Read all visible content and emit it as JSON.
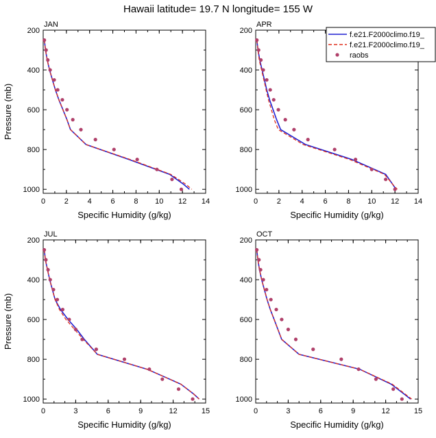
{
  "title": "Hawaii  latitude= 19.7 N longitude= 155 W",
  "chart_data": {
    "type": "line",
    "xlabel": "Specific Humidity (g/kg)",
    "ylabel": "Pressure (mb)",
    "ylim": [
      200,
      1020
    ],
    "y_reversed": true,
    "y_ticks": [
      200,
      400,
      600,
      800,
      1000
    ],
    "legend": [
      {
        "name": "f.e21.F2000climo.f19_",
        "style": "solid",
        "color": "#1f1fd1"
      },
      {
        "name": "f.e21.F2000climo.f19_",
        "style": "dashed",
        "color": "#e0301e"
      },
      {
        "name": "raobs",
        "style": "dot",
        "color": "#b0406a"
      }
    ],
    "panels": [
      {
        "label": "JAN",
        "xlim": [
          0,
          14
        ],
        "x_ticks": [
          0,
          2,
          4,
          6,
          8,
          10,
          12,
          14
        ],
        "pressure": [
          250,
          300,
          350,
          400,
          450,
          500,
          550,
          600,
          650,
          700,
          775,
          850,
          925,
          975,
          1000
        ],
        "series": [
          {
            "name": "f.e21.F2000climo.f19_",
            "values": [
              0.1,
              0.2,
              0.35,
              0.55,
              0.8,
              1.05,
              1.35,
              1.7,
              2.05,
              2.35,
              3.7,
              7.4,
              10.9,
              12.1,
              12.6
            ]
          },
          {
            "name": "f.e21.F2000climo.f19_",
            "values": [
              0.1,
              0.2,
              0.35,
              0.55,
              0.8,
              1.05,
              1.35,
              1.7,
              2.05,
              2.35,
              3.7,
              7.5,
              11.0,
              12.3,
              12.8
            ]
          }
        ],
        "raobs": {
          "x": [
            0.1,
            0.25,
            0.4,
            0.6,
            0.95,
            1.25,
            1.65,
            2.05,
            2.55,
            3.25,
            4.5,
            6.1,
            8.1,
            9.8,
            11.1,
            11.9
          ],
          "y": [
            250,
            300,
            350,
            400,
            450,
            500,
            550,
            600,
            650,
            700,
            750,
            800,
            850,
            900,
            950,
            1000
          ]
        }
      },
      {
        "label": "APR",
        "xlim": [
          0,
          14
        ],
        "x_ticks": [
          0,
          2,
          4,
          6,
          8,
          10,
          12,
          14
        ],
        "pressure": [
          250,
          300,
          350,
          400,
          450,
          500,
          550,
          600,
          650,
          700,
          775,
          850,
          925,
          975,
          1000
        ],
        "series": [
          {
            "name": "f.e21.F2000climo.f19_",
            "values": [
              0.1,
              0.2,
              0.35,
              0.55,
              0.75,
              0.95,
              1.2,
              1.5,
              1.8,
              2.15,
              4.3,
              8.3,
              11.2,
              11.8,
              12.1
            ]
          },
          {
            "name": "f.e21.F2000climo.f19_",
            "values": [
              0.1,
              0.2,
              0.3,
              0.5,
              0.7,
              0.9,
              1.1,
              1.35,
              1.6,
              1.95,
              4.1,
              8.1,
              11.1,
              11.8,
              12.2
            ]
          }
        ],
        "raobs": {
          "x": [
            0.1,
            0.25,
            0.45,
            0.65,
            0.95,
            1.25,
            1.55,
            1.95,
            2.55,
            3.3,
            4.5,
            6.8,
            8.6,
            10.0,
            11.2,
            12.0
          ],
          "y": [
            250,
            300,
            350,
            400,
            450,
            500,
            550,
            600,
            650,
            700,
            750,
            800,
            850,
            900,
            950,
            1000
          ]
        }
      },
      {
        "label": "JUL",
        "xlim": [
          0,
          15
        ],
        "x_ticks": [
          0,
          3,
          6,
          9,
          12,
          15
        ],
        "pressure": [
          250,
          300,
          350,
          400,
          450,
          500,
          550,
          600,
          650,
          700,
          775,
          850,
          925,
          975,
          1000
        ],
        "series": [
          {
            "name": "f.e21.F2000climo.f19_",
            "values": [
              0.1,
              0.2,
              0.4,
              0.6,
              0.85,
              1.1,
              1.6,
              2.3,
              3.1,
              3.8,
              5.0,
              9.6,
              12.7,
              13.9,
              14.4
            ]
          },
          {
            "name": "f.e21.F2000climo.f19_",
            "values": [
              0.1,
              0.2,
              0.4,
              0.6,
              0.85,
              1.1,
              1.5,
              2.1,
              2.9,
              3.7,
              5.0,
              9.6,
              12.7,
              13.9,
              14.4
            ]
          }
        ],
        "raobs": {
          "x": [
            0.1,
            0.25,
            0.45,
            0.65,
            0.95,
            1.3,
            1.8,
            2.4,
            3.0,
            3.6,
            4.9,
            7.5,
            9.8,
            11.0,
            12.5,
            13.8
          ],
          "y": [
            250,
            300,
            350,
            400,
            450,
            500,
            550,
            600,
            650,
            700,
            750,
            800,
            850,
            900,
            950,
            1000
          ]
        }
      },
      {
        "label": "OCT",
        "xlim": [
          0,
          15
        ],
        "x_ticks": [
          0,
          3,
          6,
          9,
          12,
          15
        ],
        "pressure": [
          250,
          300,
          350,
          400,
          450,
          500,
          550,
          600,
          650,
          700,
          775,
          850,
          925,
          975,
          1000
        ],
        "series": [
          {
            "name": "f.e21.F2000climo.f19_",
            "values": [
              0.1,
              0.2,
              0.35,
              0.55,
              0.8,
              1.05,
              1.35,
              1.7,
              2.05,
              2.4,
              4.0,
              9.6,
              12.5,
              13.7,
              14.3
            ]
          },
          {
            "name": "f.e21.F2000climo.f19_",
            "values": [
              0.1,
              0.2,
              0.35,
              0.55,
              0.8,
              1.05,
              1.35,
              1.7,
              2.05,
              2.4,
              4.0,
              9.6,
              12.6,
              13.8,
              14.4
            ]
          }
        ],
        "raobs": {
          "x": [
            0.1,
            0.3,
            0.45,
            0.7,
            1.0,
            1.4,
            1.9,
            2.4,
            3.0,
            3.7,
            5.3,
            7.9,
            9.5,
            11.1,
            12.7,
            13.5
          ],
          "y": [
            250,
            300,
            350,
            400,
            450,
            500,
            550,
            600,
            650,
            700,
            750,
            800,
            850,
            900,
            950,
            1000
          ]
        }
      }
    ]
  }
}
